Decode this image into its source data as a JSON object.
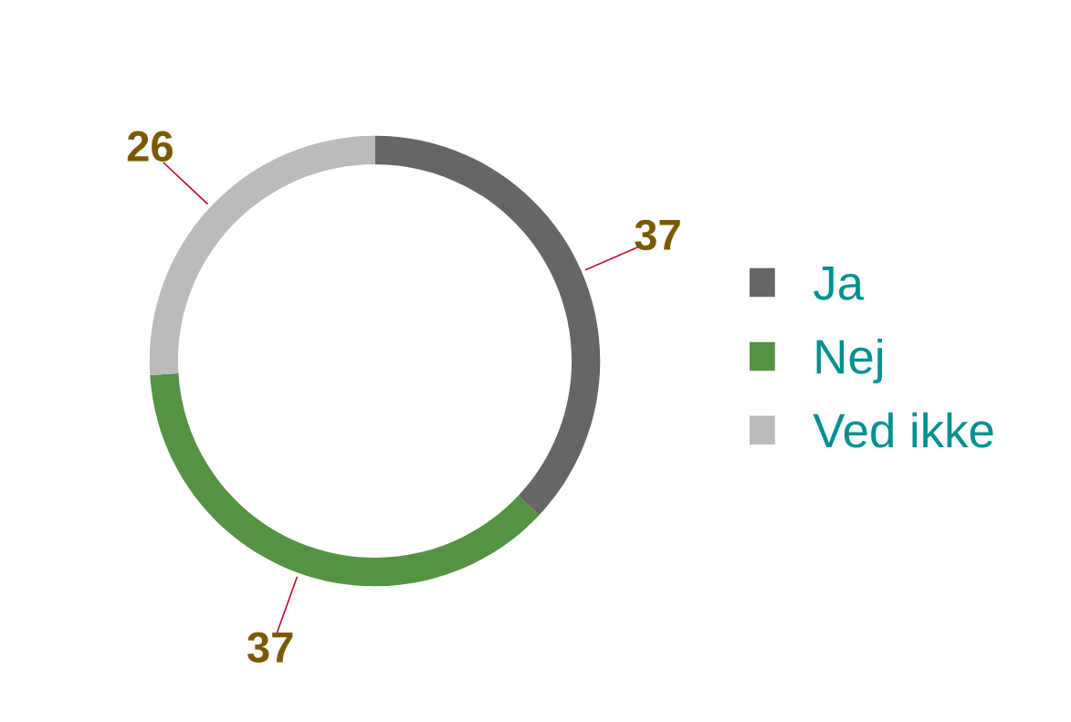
{
  "chart_data": {
    "type": "donut",
    "categories": [
      "Ja",
      "Nej",
      "Ved ikke"
    ],
    "values": [
      37,
      37,
      26
    ],
    "colors": [
      "#666666",
      "#559244",
      "#bbbbbb"
    ],
    "data_labels": true,
    "legend": "right"
  }
}
